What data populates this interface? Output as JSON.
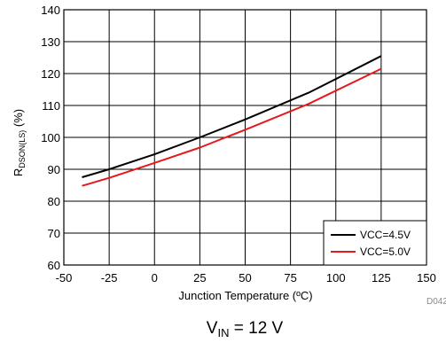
{
  "chart_data": {
    "type": "line",
    "xlabel": "Junction Temperature (ºC)",
    "ylabel_main": "R",
    "ylabel_sub": "DSON(LS)",
    "ylabel_unit": " (%)",
    "xlim": [
      -50,
      150
    ],
    "ylim": [
      60,
      140
    ],
    "xticks": [
      -50,
      -25,
      0,
      25,
      50,
      75,
      100,
      125,
      150
    ],
    "yticks": [
      60,
      70,
      80,
      90,
      100,
      110,
      120,
      130,
      140
    ],
    "grid": true,
    "legend_position": "bottom-right",
    "series": [
      {
        "name": "VCC=4.5V",
        "color": "#000000",
        "x": [
          -40,
          -25,
          0,
          25,
          50,
          85,
          125
        ],
        "y": [
          87.5,
          90.0,
          94.7,
          100.0,
          105.6,
          114.0,
          125.5
        ]
      },
      {
        "name": "VCC=5.0V",
        "color": "#e41a1c",
        "x": [
          -40,
          -25,
          0,
          25,
          50,
          85,
          125
        ],
        "y": [
          84.8,
          87.3,
          92.0,
          96.8,
          102.4,
          110.5,
          121.5
        ]
      }
    ],
    "figure_id": "D042",
    "caption_main": "V",
    "caption_sub": "IN",
    "caption_rest": " = 12 V"
  }
}
